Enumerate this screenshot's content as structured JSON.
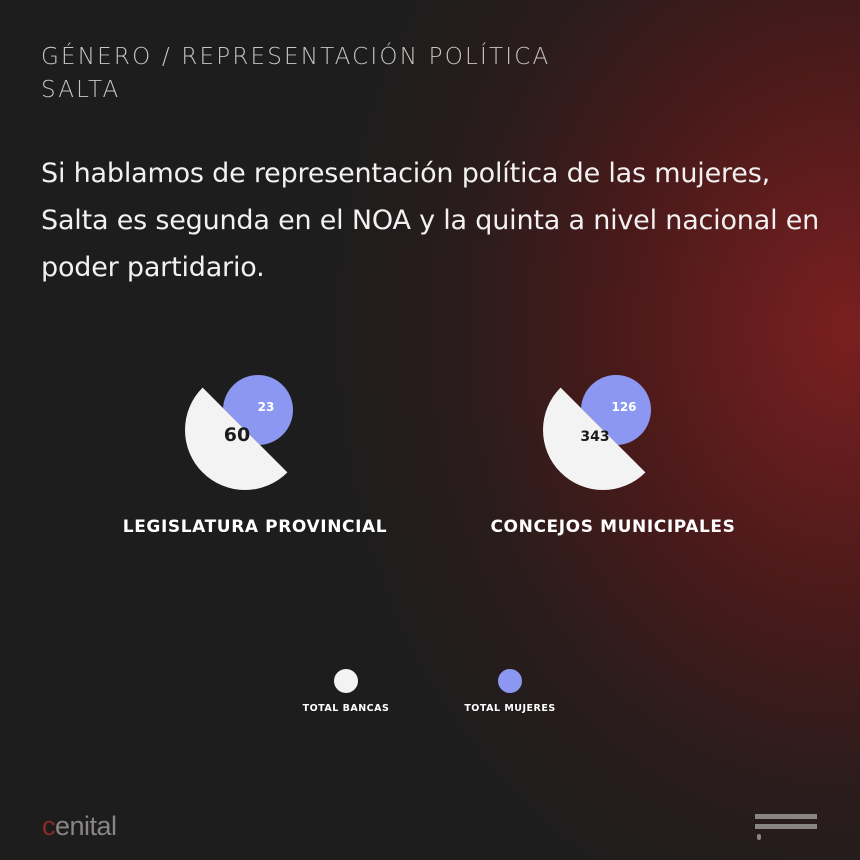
{
  "header": {
    "kicker_line1": "GÉNERO / REPRESENTACIÓN POLÍTICA",
    "kicker_line2": "SALTA"
  },
  "headline": "Si hablamos de representación política de las mujeres, Salta es segunda en el NOA y la quinta a nivel nacional en poder partidario.",
  "colors": {
    "total": "#f3f3f3",
    "mujeres": "#8b97f1",
    "accent": "#8a2b2b"
  },
  "chart_data": {
    "type": "pie",
    "title": "",
    "charts": [
      {
        "label": "LEGISLATURA PROVINCIAL",
        "total_bancas": 60,
        "total_mujeres": 23
      },
      {
        "label": "CONCEJOS MUNICIPALES",
        "total_bancas": 343,
        "total_mujeres": 126
      }
    ],
    "legend": [
      "TOTAL BANCAS",
      "TOTAL  MUJERES"
    ],
    "legend_placement": "bottom-center"
  },
  "footer": {
    "logo": "cenital",
    "menu_icon": "menu-icon"
  }
}
